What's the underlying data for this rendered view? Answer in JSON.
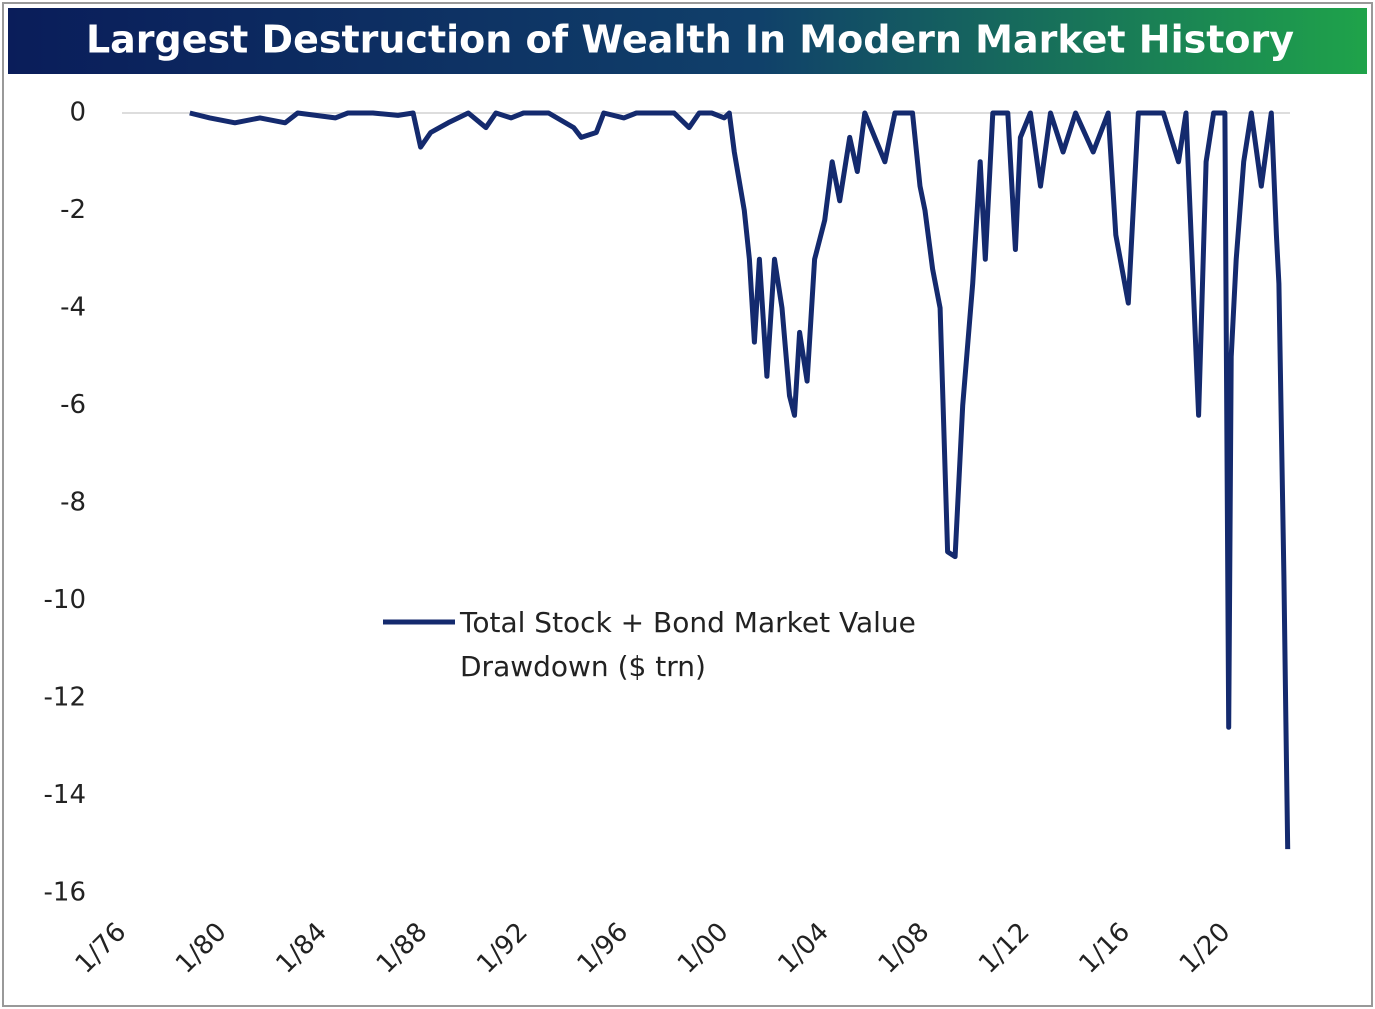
{
  "chart_data": {
    "type": "line",
    "title": "Largest Destruction of Wealth In Modern Market History",
    "x": [
      1978.7,
      1979.5,
      1980.5,
      1981.5,
      1982.5,
      1983,
      1984.5,
      1985,
      1986,
      1987,
      1987.6,
      1987.9,
      1988.3,
      1989,
      1989.8,
      1990.5,
      1990.9,
      1991.5,
      1992,
      1993,
      1994,
      1994.3,
      1994.9,
      1995.2,
      1996,
      1996.5,
      1998,
      1998.6,
      1999,
      1999.5,
      2000.0,
      2000.2,
      2000.4,
      2000.8,
      2001.0,
      2001.2,
      2001.4,
      2001.7,
      2002.0,
      2002.3,
      2002.6,
      2002.8,
      2003.0,
      2003.3,
      2003.6,
      2004.0,
      2004.3,
      2004.6,
      2005.0,
      2005.3,
      2005.6,
      2006.0,
      2006.4,
      2006.8,
      2007.5,
      2007.8,
      2008.0,
      2008.3,
      2008.6,
      2008.9,
      2009.2,
      2009.5,
      2009.9,
      2010.2,
      2010.4,
      2010.7,
      2011.3,
      2011.6,
      2011.8,
      2012.2,
      2012.6,
      2013,
      2013.5,
      2014,
      2014.7,
      2015.3,
      2015.6,
      2016.1,
      2016.5,
      2017,
      2017.5,
      2018.1,
      2018.4,
      2018.9,
      2019.2,
      2019.5,
      2019.95,
      2020.1,
      2020.2,
      2020.4,
      2020.7,
      2021.0,
      2021.4,
      2021.8,
      2022.0,
      2022.1,
      2022.2,
      2022.3,
      2022.38,
      2022.45
    ],
    "series": [
      {
        "name": "Total Stock + Bond Market Value Drawdown ($ trn)",
        "color": "#142a6e",
        "values": [
          0,
          -0.1,
          -0.2,
          -0.1,
          -0.2,
          0,
          -0.1,
          0,
          0,
          -0.05,
          0,
          -0.7,
          -0.4,
          -0.2,
          0,
          -0.3,
          0,
          -0.1,
          0,
          0,
          -0.3,
          -0.5,
          -0.4,
          0,
          -0.1,
          0,
          0,
          -0.3,
          0,
          0,
          -0.1,
          0,
          -0.8,
          -2.0,
          -3.0,
          -4.7,
          -3.0,
          -5.4,
          -3.0,
          -4.0,
          -5.8,
          -6.2,
          -4.5,
          -5.5,
          -3.0,
          -2.2,
          -1.0,
          -1.8,
          -0.5,
          -1.2,
          0,
          -0.5,
          -1.0,
          0,
          0,
          -1.5,
          -2.0,
          -3.2,
          -4.0,
          -9.0,
          -9.1,
          -6.0,
          -3.5,
          -1.0,
          -3.0,
          0,
          0,
          -2.8,
          -0.5,
          0,
          -1.5,
          0,
          -0.8,
          0,
          -0.8,
          0,
          -2.5,
          -3.9,
          0,
          0,
          0,
          -1.0,
          0,
          -6.2,
          -1.0,
          0,
          0,
          -12.6,
          -5.0,
          -3.0,
          -1.0,
          0,
          -1.5,
          0,
          -2.5,
          -3.5,
          -6.5,
          -9.5,
          -12.5,
          -15.1
        ]
      }
    ],
    "xlim": [
      1976,
      2023.5
    ],
    "xticks": [
      {
        "value": 1976,
        "label": "1/76"
      },
      {
        "value": 1980,
        "label": "1/80"
      },
      {
        "value": 1984,
        "label": "1/84"
      },
      {
        "value": 1988,
        "label": "1/88"
      },
      {
        "value": 1992,
        "label": "1/92"
      },
      {
        "value": 1996,
        "label": "1/96"
      },
      {
        "value": 2000,
        "label": "1/00"
      },
      {
        "value": 2004,
        "label": "1/04"
      },
      {
        "value": 2008,
        "label": "1/08"
      },
      {
        "value": 2012,
        "label": "1/12"
      },
      {
        "value": 2016,
        "label": "1/16"
      },
      {
        "value": 2020,
        "label": "1/20"
      }
    ],
    "ylim": [
      0,
      -16
    ],
    "yticks": [
      0,
      -2,
      -4,
      -6,
      -8,
      -10,
      -12,
      -14,
      -16
    ]
  }
}
